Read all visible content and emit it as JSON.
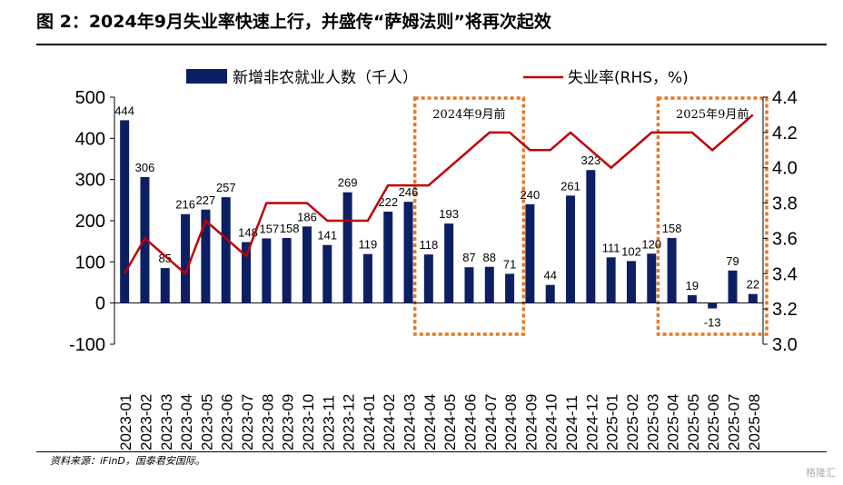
{
  "figure": {
    "title": "图 2：2024年9月失业率快速上行，并盛传“萨姆法则”将再次起效",
    "source": "资料来源：iFinD，国泰君安国际。",
    "watermark": "格隆汇"
  },
  "chart_data": {
    "type": "bar",
    "categories": [
      "2023-01",
      "2023-02",
      "2023-03",
      "2023-04",
      "2023-05",
      "2023-06",
      "2023-07",
      "2023-08",
      "2023-09",
      "2023-10",
      "2023-11",
      "2023-12",
      "2024-01",
      "2024-02",
      "2024-03",
      "2024-04",
      "2024-05",
      "2024-06",
      "2024-07",
      "2024-08",
      "2024-09",
      "2024-10",
      "2024-11",
      "2024-12",
      "2025-01",
      "2025-02",
      "2025-03",
      "2025-04",
      "2025-05",
      "2025-06",
      "2025-07",
      "2025-08"
    ],
    "series": [
      {
        "name": "新增非农就业人数（千人）",
        "type": "bar",
        "axis": "left",
        "color": "#0d1f63",
        "values": [
          444,
          306,
          85,
          216,
          227,
          257,
          148,
          157,
          158,
          186,
          141,
          269,
          119,
          222,
          246,
          118,
          193,
          87,
          88,
          71,
          240,
          44,
          261,
          323,
          111,
          102,
          120,
          158,
          19,
          -13,
          79,
          22
        ]
      },
      {
        "name": "失业率(RHS，%)",
        "type": "line",
        "axis": "right",
        "color": "#c00000",
        "values": [
          3.4,
          3.6,
          3.5,
          3.4,
          3.7,
          3.6,
          3.5,
          3.8,
          3.8,
          3.8,
          3.7,
          3.7,
          3.7,
          3.9,
          3.9,
          3.9,
          4.0,
          4.1,
          4.2,
          4.2,
          4.1,
          4.1,
          4.2,
          4.1,
          4.0,
          4.1,
          4.2,
          4.2,
          4.2,
          4.1,
          4.2,
          4.3
        ]
      }
    ],
    "y_left": {
      "min": -100,
      "max": 500,
      "ticks": [
        -100,
        0,
        100,
        200,
        300,
        400,
        500
      ]
    },
    "y_right": {
      "min": 3.0,
      "max": 4.4,
      "ticks": [
        "3.0",
        "3.2",
        "3.4",
        "3.6",
        "3.8",
        "4.0",
        "4.2",
        "4.4"
      ]
    },
    "legend_placement": "top",
    "annotations": [
      {
        "label": "2024年9月前",
        "from": "2024-04",
        "to": "2024-08",
        "color": "#e87722"
      },
      {
        "label": "2025年9月前",
        "from": "2025-04",
        "to": "2025-08",
        "color": "#e87722"
      }
    ]
  }
}
